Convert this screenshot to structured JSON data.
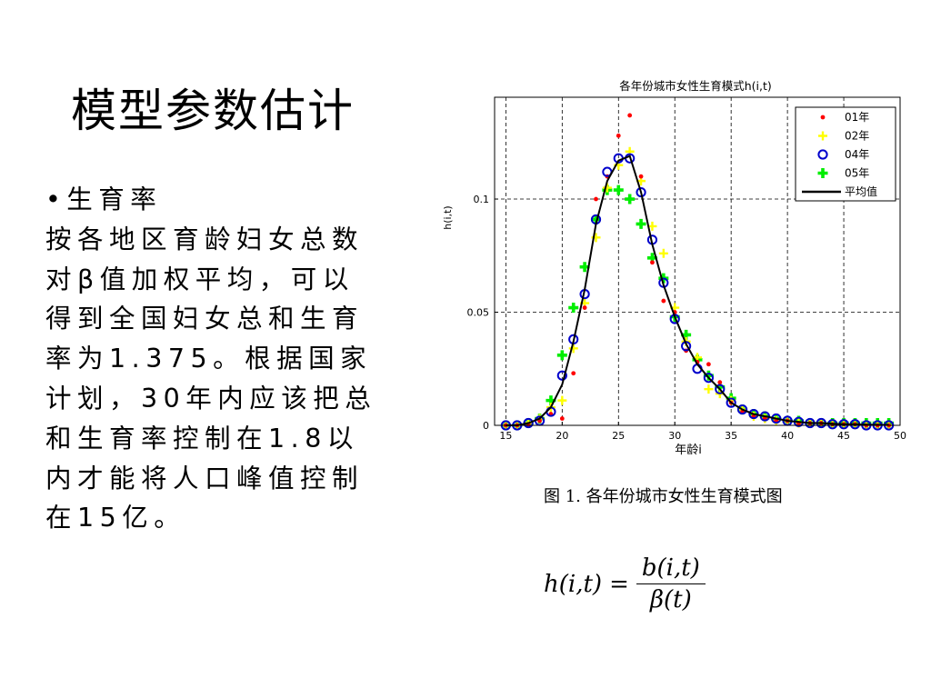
{
  "slide": {
    "title": "模型参数估计",
    "bullet": "•生育率",
    "paragraph": "按各地区育龄妇女总数对β值加权平均，可以得到全国妇女总和生育率为1.375。根据国家计划，30年内应该把总和生育率控制在1.8以内才能将人口峰值控制在15亿。",
    "caption": "图 1. 各年份城市女性生育模式图",
    "formula": {
      "lhs": "h(i,t)",
      "eq": "=",
      "numerator": "b(i,t)",
      "denominator": "β(t)"
    }
  },
  "colors": {
    "s01": "#ff0000",
    "s02": "#ffff00",
    "s04": "#0000cc",
    "s05": "#00ee00",
    "avg": "#000000"
  },
  "chart_data": {
    "type": "scatter",
    "title": "各年份城市女性生育模式h(i,t)",
    "xlabel": "年龄i",
    "ylabel": "h(i,t)",
    "xlim": [
      14,
      50
    ],
    "ylim": [
      0,
      0.145
    ],
    "xticks": [
      15,
      20,
      25,
      30,
      35,
      40,
      45,
      50
    ],
    "yticks": [
      0,
      0.05,
      0.1
    ],
    "ytick_labels": [
      "0",
      "0.05",
      "0.1"
    ],
    "grid": true,
    "legend_position": "top-right",
    "x": [
      15,
      16,
      17,
      18,
      19,
      20,
      21,
      22,
      23,
      24,
      25,
      26,
      27,
      28,
      29,
      30,
      31,
      32,
      33,
      34,
      35,
      36,
      37,
      38,
      39,
      40,
      41,
      42,
      43,
      44,
      45,
      46,
      47,
      48,
      49
    ],
    "series": [
      {
        "name": "01年",
        "marker": "dot",
        "color_key": "s01",
        "values": [
          0,
          0,
          0.0005,
          0.002,
          0.005,
          0.003,
          0.023,
          0.052,
          0.1,
          0.11,
          0.128,
          0.137,
          0.11,
          0.072,
          0.055,
          0.05,
          0.033,
          0.028,
          0.027,
          0.019,
          0.01,
          0.006,
          0.004,
          0.003,
          0.002,
          0.002,
          0.001,
          0.001,
          0.001,
          0.0005,
          0.0005,
          0.0005,
          0,
          0,
          0
        ]
      },
      {
        "name": "02年",
        "marker": "plus",
        "color_key": "s02",
        "values": [
          0,
          0,
          0.001,
          0.003,
          0.008,
          0.011,
          0.034,
          0.054,
          0.083,
          0.105,
          0.115,
          0.121,
          0.108,
          0.088,
          0.076,
          0.052,
          0.037,
          0.03,
          0.016,
          0.014,
          0.011,
          0.007,
          0.004,
          0.003,
          0.002,
          0.002,
          0.001,
          0.001,
          0.001,
          0.0005,
          0.0005,
          0.0005,
          0,
          0,
          0
        ]
      },
      {
        "name": "04年",
        "marker": "circle",
        "color_key": "s04",
        "values": [
          0,
          0,
          0.001,
          0.002,
          0.006,
          0.022,
          0.038,
          0.058,
          0.091,
          0.112,
          0.118,
          0.118,
          0.103,
          0.082,
          0.063,
          0.047,
          0.035,
          0.025,
          0.021,
          0.016,
          0.01,
          0.007,
          0.005,
          0.004,
          0.003,
          0.002,
          0.0015,
          0.001,
          0.001,
          0.0005,
          0.0005,
          0.0005,
          0,
          0,
          0
        ]
      },
      {
        "name": "05年",
        "marker": "bigplus",
        "color_key": "s05",
        "values": [
          0,
          0,
          0.001,
          0.003,
          0.011,
          0.031,
          0.052,
          0.07,
          0.091,
          0.104,
          0.104,
          0.1,
          0.089,
          0.074,
          0.065,
          0.048,
          0.04,
          0.029,
          0.022,
          0.017,
          0.012,
          0.007,
          0.005,
          0.004,
          0.003,
          0.002,
          0.002,
          0.001,
          0.001,
          0.001,
          0.001,
          0.001,
          0.001,
          0.001,
          0.001
        ]
      },
      {
        "name": "平均值",
        "marker": "line",
        "color_key": "avg",
        "values": [
          0,
          0,
          0.001,
          0.003,
          0.008,
          0.018,
          0.037,
          0.06,
          0.089,
          0.108,
          0.117,
          0.119,
          0.103,
          0.08,
          0.062,
          0.048,
          0.036,
          0.027,
          0.021,
          0.016,
          0.01,
          0.007,
          0.005,
          0.004,
          0.003,
          0.002,
          0.0015,
          0.001,
          0.001,
          0.0007,
          0.0005,
          0.0005,
          0.0003,
          0.0002,
          0.0002
        ]
      }
    ]
  }
}
